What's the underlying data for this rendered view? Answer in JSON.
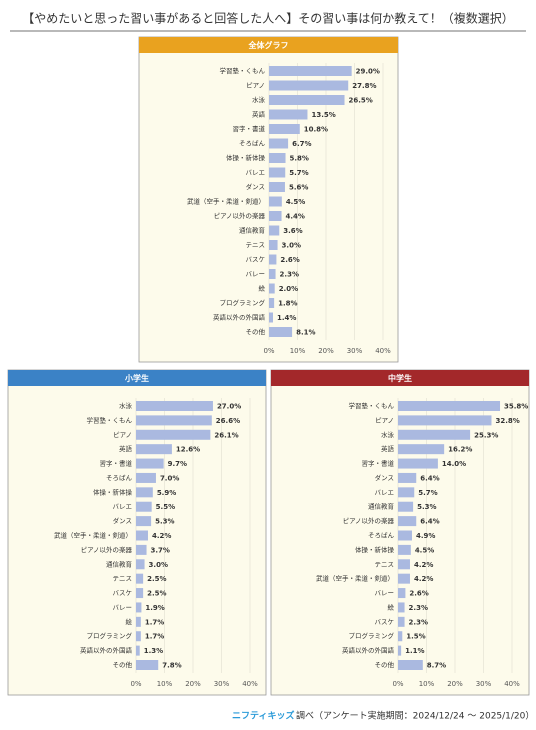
{
  "title": "【やめたいと思った習い事があると回答した人へ】その習い事は何か教えて！（複数選択）",
  "footer": {
    "brand": "ニフティキッズ",
    "note": "調べ（アンケート実施期間：2024/12/24 ～ 2025/1/20）"
  },
  "chart_data": [
    {
      "type": "bar",
      "orientation": "horizontal",
      "title": "全体グラフ",
      "header_color": "#e9a21f",
      "color": "#aab9e0",
      "categories": [
        "学習塾・くもん",
        "ピアノ",
        "水泳",
        "英語",
        "習字・書道",
        "そろばん",
        "体操・新体操",
        "バレエ",
        "ダンス",
        "武道（空手・柔道・剣道）",
        "ピアノ以外の楽器",
        "通信教育",
        "テニス",
        "バスケ",
        "バレー",
        "絵",
        "プログラミング",
        "英語以外の外国語",
        "その他"
      ],
      "values": [
        29.0,
        27.8,
        26.5,
        13.5,
        10.8,
        6.7,
        5.8,
        5.7,
        5.6,
        4.5,
        4.4,
        3.6,
        3.0,
        2.6,
        2.3,
        2.0,
        1.8,
        1.4,
        8.1
      ],
      "value_labels": [
        "29.0%",
        "27.8%",
        "26.5%",
        "13.5%",
        "10.8%",
        "6.7%",
        "5.8%",
        "5.7%",
        "5.6%",
        "4.5%",
        "4.4%",
        "3.6%",
        "3.0%",
        "2.6%",
        "2.3%",
        "2.0%",
        "1.8%",
        "1.4%",
        "8.1%"
      ],
      "xlim": [
        0,
        40
      ],
      "xticks": [
        {
          "value": 0,
          "label": "0%"
        },
        {
          "value": 10,
          "label": "10%"
        },
        {
          "value": 20,
          "label": "20%"
        },
        {
          "value": 30,
          "label": "30%"
        },
        {
          "value": 40,
          "label": "40%"
        }
      ],
      "grid": true
    },
    {
      "type": "bar",
      "orientation": "horizontal",
      "title": "小学生",
      "header_color": "#3b82c6",
      "color": "#aab9e0",
      "categories": [
        "水泳",
        "学習塾・くもん",
        "ピアノ",
        "英語",
        "習字・書道",
        "そろばん",
        "体操・新体操",
        "バレエ",
        "ダンス",
        "武道（空手・柔道・剣道）",
        "ピアノ以外の楽器",
        "通信教育",
        "テニス",
        "バスケ",
        "バレー",
        "絵",
        "プログラミング",
        "英語以外の外国語",
        "その他"
      ],
      "values": [
        27.0,
        26.6,
        26.1,
        12.6,
        9.7,
        7.0,
        5.9,
        5.5,
        5.3,
        4.2,
        3.7,
        3.0,
        2.5,
        2.5,
        1.9,
        1.7,
        1.7,
        1.3,
        7.8
      ],
      "value_labels": [
        "27.0%",
        "26.6%",
        "26.1%",
        "12.6%",
        "9.7%",
        "7.0%",
        "5.9%",
        "5.5%",
        "5.3%",
        "4.2%",
        "3.7%",
        "3.0%",
        "2.5%",
        "2.5%",
        "1.9%",
        "1.7%",
        "1.7%",
        "1.3%",
        "7.8%"
      ],
      "xlim": [
        0,
        40
      ],
      "xticks": [
        {
          "value": 0,
          "label": "0%"
        },
        {
          "value": 10,
          "label": "10%"
        },
        {
          "value": 20,
          "label": "20%"
        },
        {
          "value": 30,
          "label": "30%"
        },
        {
          "value": 40,
          "label": "40%"
        }
      ],
      "grid": true
    },
    {
      "type": "bar",
      "orientation": "horizontal",
      "title": "中学生",
      "header_color": "#a3282a",
      "color": "#aab9e0",
      "categories": [
        "学習塾・くもん",
        "ピアノ",
        "水泳",
        "英語",
        "習字・書道",
        "ダンス",
        "バレエ",
        "通信教育",
        "ピアノ以外の楽器",
        "そろばん",
        "体操・新体操",
        "テニス",
        "武道（空手・柔道・剣道）",
        "バレー",
        "絵",
        "バスケ",
        "プログラミング",
        "英語以外の外国語",
        "その他"
      ],
      "values": [
        35.8,
        32.8,
        25.3,
        16.2,
        14.0,
        6.4,
        5.7,
        5.3,
        6.4,
        4.9,
        4.5,
        4.2,
        4.2,
        2.6,
        2.3,
        2.3,
        1.5,
        1.1,
        8.7
      ],
      "value_labels": [
        "35.8%",
        "32.8%",
        "25.3%",
        "16.2%",
        "14.0%",
        "6.4%",
        "5.7%",
        "5.3%",
        "6.4%",
        "4.9%",
        "4.5%",
        "4.2%",
        "4.2%",
        "2.6%",
        "2.3%",
        "2.3%",
        "1.5%",
        "1.1%",
        "8.7%"
      ],
      "xlim": [
        0,
        40
      ],
      "xticks": [
        {
          "value": 0,
          "label": "0%"
        },
        {
          "value": 10,
          "label": "10%"
        },
        {
          "value": 20,
          "label": "20%"
        },
        {
          "value": 30,
          "label": "30%"
        },
        {
          "value": 40,
          "label": "40%"
        }
      ],
      "grid": true
    }
  ]
}
